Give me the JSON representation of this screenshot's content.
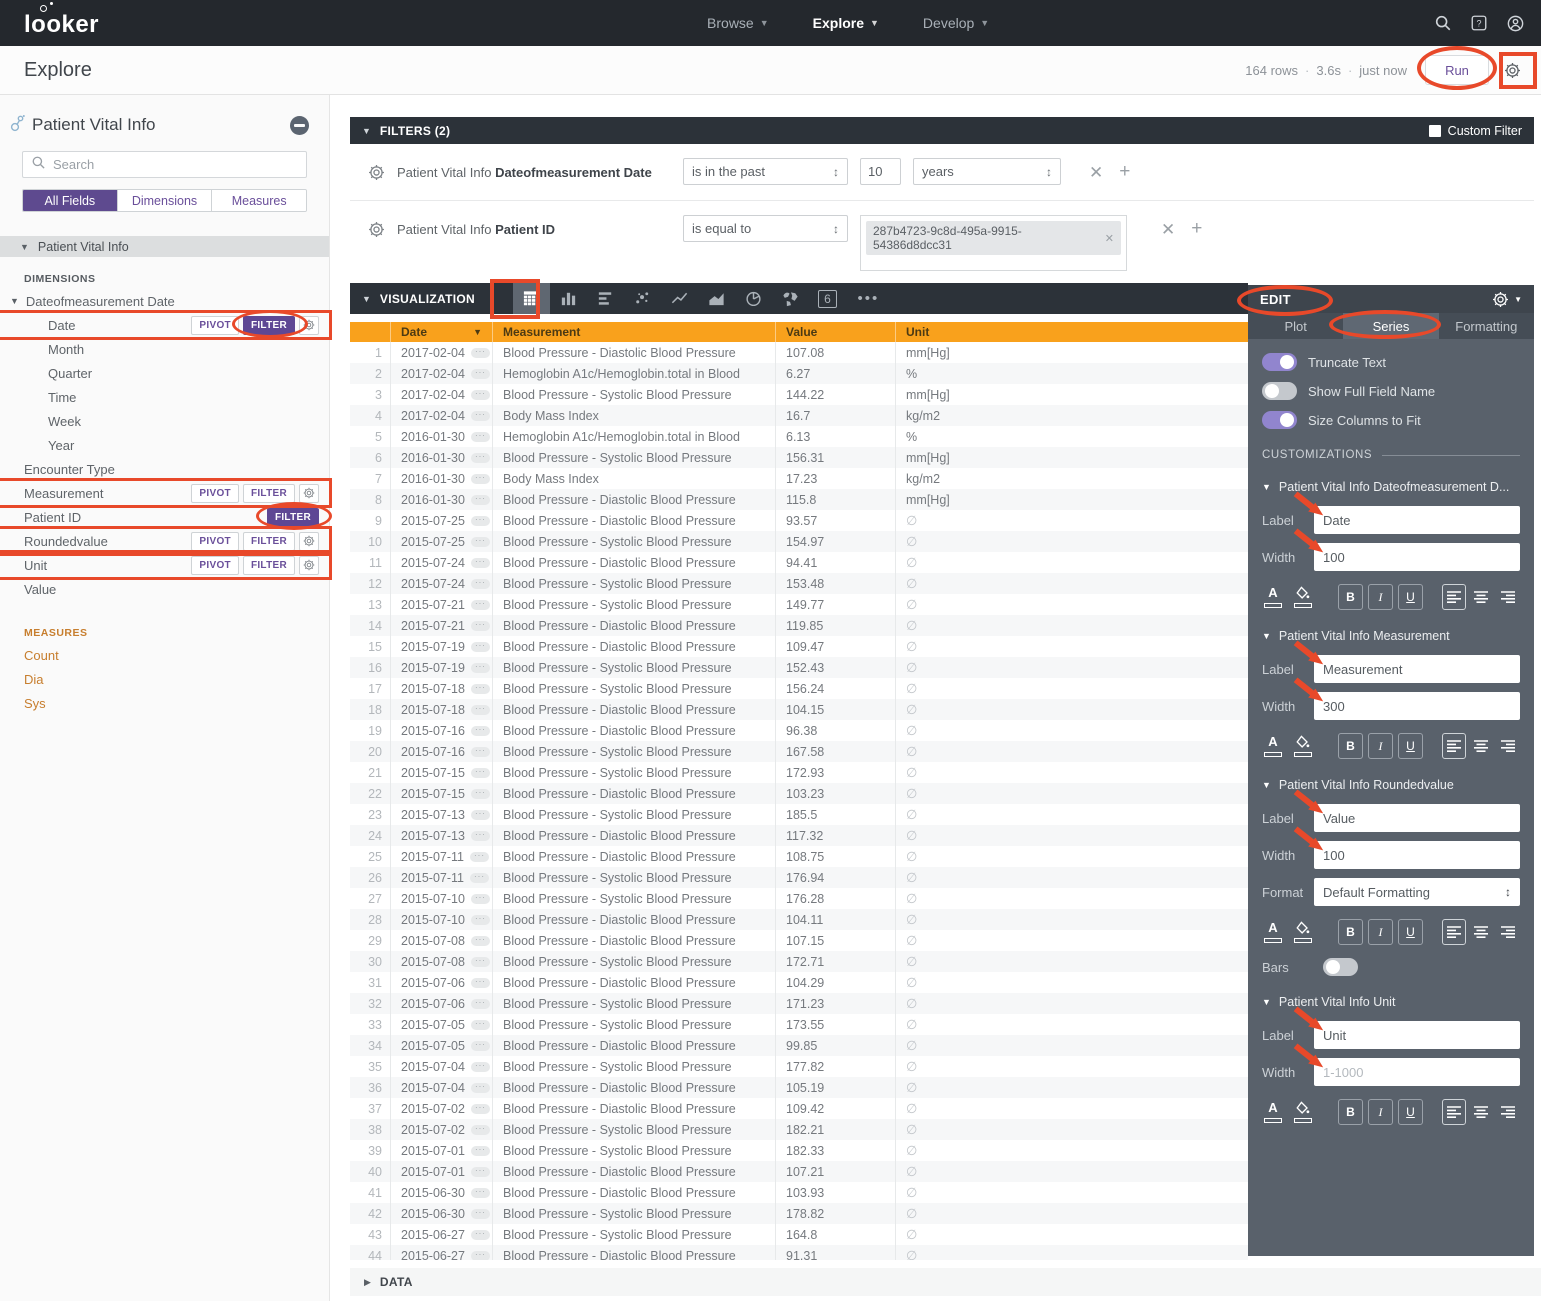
{
  "topnav": {
    "logo": "looker",
    "menus": [
      {
        "label": "Browse",
        "active": false
      },
      {
        "label": "Explore",
        "active": true
      },
      {
        "label": "Develop",
        "active": false
      }
    ]
  },
  "header": {
    "title": "Explore",
    "stats": [
      "164 rows",
      "3.6s",
      "just now"
    ],
    "run_label": "Run"
  },
  "sidebar": {
    "model_title": "Patient Vital Info",
    "search_placeholder": "Search",
    "tabs": [
      {
        "label": "All Fields",
        "active": true
      },
      {
        "label": "Dimensions",
        "active": false
      },
      {
        "label": "Measures",
        "active": false
      }
    ],
    "group_label": "Patient Vital Info",
    "dimensions_heading": "DIMENSIONS",
    "measures_heading": "MEASURES",
    "pivot_label": "PIVOT",
    "filter_label": "FILTER",
    "fields": [
      {
        "label": "Dateofmeasurement Date",
        "indent": 0,
        "expander": true
      },
      {
        "label": "Date",
        "indent": 1,
        "pivot": true,
        "filter": true,
        "filter_active": true,
        "gear": true,
        "ann_box": true,
        "ann_ellipse": true
      },
      {
        "label": "Month",
        "indent": 1
      },
      {
        "label": "Quarter",
        "indent": 1
      },
      {
        "label": "Time",
        "indent": 1
      },
      {
        "label": "Week",
        "indent": 1
      },
      {
        "label": "Year",
        "indent": 1
      },
      {
        "label": "Encounter Type",
        "indent": 0
      },
      {
        "label": "Measurement",
        "indent": 0,
        "pivot": true,
        "filter": true,
        "gear": true,
        "ann_box": true
      },
      {
        "label": "Patient ID",
        "indent": 0,
        "filter": true,
        "filter_active": true,
        "ann_ellipse": true
      },
      {
        "label": "Roundedvalue",
        "indent": 0,
        "pivot": true,
        "filter": true,
        "gear": true,
        "ann_box": true
      },
      {
        "label": "Unit",
        "indent": 0,
        "pivot": true,
        "filter": true,
        "gear": true,
        "ann_box": true
      },
      {
        "label": "Value",
        "indent": 0
      }
    ],
    "measures": [
      "Count",
      "Dia",
      "Sys"
    ]
  },
  "filters": {
    "title": "FILTERS (2)",
    "custom_filter_label": "Custom Filter",
    "rows": [
      {
        "prefix": "Patient Vital Info",
        "field": "Dateofmeasurement Date",
        "op": "is in the past",
        "value": "10",
        "unit": "years"
      },
      {
        "prefix": "Patient Vital Info",
        "field": "Patient ID",
        "op": "is equal to",
        "tag": "287b4723-9c8d-495a-9915-54386d8dcc31"
      }
    ]
  },
  "visualization": {
    "title": "VISUALIZATION",
    "icons": [
      {
        "name": "table",
        "selected": true
      },
      {
        "name": "bar",
        "selected": false
      },
      {
        "name": "hbar",
        "selected": false
      },
      {
        "name": "scatter",
        "selected": false
      },
      {
        "name": "line",
        "selected": false
      },
      {
        "name": "area",
        "selected": false
      },
      {
        "name": "pie",
        "selected": false
      },
      {
        "name": "map",
        "selected": false
      },
      {
        "name": "single-value",
        "selected": false,
        "glyph": "6"
      },
      {
        "name": "more",
        "selected": false
      }
    ]
  },
  "table": {
    "columns": [
      "Date",
      "Measurement",
      "Value",
      "Unit"
    ],
    "null_symbol": "∅",
    "rows": [
      [
        "2017-02-04",
        "Blood Pressure - Diastolic Blood Pressure",
        "107.08",
        "mm[Hg]"
      ],
      [
        "2017-02-04",
        "Hemoglobin A1c/Hemoglobin.total in Blood",
        "6.27",
        "%"
      ],
      [
        "2017-02-04",
        "Blood Pressure - Systolic Blood Pressure",
        "144.22",
        "mm[Hg]"
      ],
      [
        "2017-02-04",
        "Body Mass Index",
        "16.7",
        "kg/m2"
      ],
      [
        "2016-01-30",
        "Hemoglobin A1c/Hemoglobin.total in Blood",
        "6.13",
        "%"
      ],
      [
        "2016-01-30",
        "Blood Pressure - Systolic Blood Pressure",
        "156.31",
        "mm[Hg]"
      ],
      [
        "2016-01-30",
        "Body Mass Index",
        "17.23",
        "kg/m2"
      ],
      [
        "2016-01-30",
        "Blood Pressure - Diastolic Blood Pressure",
        "115.8",
        "mm[Hg]"
      ],
      [
        "2015-07-25",
        "Blood Pressure - Diastolic Blood Pressure",
        "93.57",
        null
      ],
      [
        "2015-07-25",
        "Blood Pressure - Systolic Blood Pressure",
        "154.97",
        null
      ],
      [
        "2015-07-24",
        "Blood Pressure - Diastolic Blood Pressure",
        "94.41",
        null
      ],
      [
        "2015-07-24",
        "Blood Pressure - Systolic Blood Pressure",
        "153.48",
        null
      ],
      [
        "2015-07-21",
        "Blood Pressure - Systolic Blood Pressure",
        "149.77",
        null
      ],
      [
        "2015-07-21",
        "Blood Pressure - Diastolic Blood Pressure",
        "119.85",
        null
      ],
      [
        "2015-07-19",
        "Blood Pressure - Diastolic Blood Pressure",
        "109.47",
        null
      ],
      [
        "2015-07-19",
        "Blood Pressure - Systolic Blood Pressure",
        "152.43",
        null
      ],
      [
        "2015-07-18",
        "Blood Pressure - Systolic Blood Pressure",
        "156.24",
        null
      ],
      [
        "2015-07-18",
        "Blood Pressure - Diastolic Blood Pressure",
        "104.15",
        null
      ],
      [
        "2015-07-16",
        "Blood Pressure - Diastolic Blood Pressure",
        "96.38",
        null
      ],
      [
        "2015-07-16",
        "Blood Pressure - Systolic Blood Pressure",
        "167.58",
        null
      ],
      [
        "2015-07-15",
        "Blood Pressure - Systolic Blood Pressure",
        "172.93",
        null
      ],
      [
        "2015-07-15",
        "Blood Pressure - Diastolic Blood Pressure",
        "103.23",
        null
      ],
      [
        "2015-07-13",
        "Blood Pressure - Systolic Blood Pressure",
        "185.5",
        null
      ],
      [
        "2015-07-13",
        "Blood Pressure - Diastolic Blood Pressure",
        "117.32",
        null
      ],
      [
        "2015-07-11",
        "Blood Pressure - Diastolic Blood Pressure",
        "108.75",
        null
      ],
      [
        "2015-07-11",
        "Blood Pressure - Systolic Blood Pressure",
        "176.94",
        null
      ],
      [
        "2015-07-10",
        "Blood Pressure - Systolic Blood Pressure",
        "176.28",
        null
      ],
      [
        "2015-07-10",
        "Blood Pressure - Diastolic Blood Pressure",
        "104.11",
        null
      ],
      [
        "2015-07-08",
        "Blood Pressure - Diastolic Blood Pressure",
        "107.15",
        null
      ],
      [
        "2015-07-08",
        "Blood Pressure - Systolic Blood Pressure",
        "172.71",
        null
      ],
      [
        "2015-07-06",
        "Blood Pressure - Diastolic Blood Pressure",
        "104.29",
        null
      ],
      [
        "2015-07-06",
        "Blood Pressure - Systolic Blood Pressure",
        "171.23",
        null
      ],
      [
        "2015-07-05",
        "Blood Pressure - Systolic Blood Pressure",
        "173.55",
        null
      ],
      [
        "2015-07-05",
        "Blood Pressure - Diastolic Blood Pressure",
        "99.85",
        null
      ],
      [
        "2015-07-04",
        "Blood Pressure - Systolic Blood Pressure",
        "177.82",
        null
      ],
      [
        "2015-07-04",
        "Blood Pressure - Diastolic Blood Pressure",
        "105.19",
        null
      ],
      [
        "2015-07-02",
        "Blood Pressure - Diastolic Blood Pressure",
        "109.42",
        null
      ],
      [
        "2015-07-02",
        "Blood Pressure - Systolic Blood Pressure",
        "182.21",
        null
      ],
      [
        "2015-07-01",
        "Blood Pressure - Systolic Blood Pressure",
        "182.33",
        null
      ],
      [
        "2015-07-01",
        "Blood Pressure - Diastolic Blood Pressure",
        "107.21",
        null
      ],
      [
        "2015-06-30",
        "Blood Pressure - Diastolic Blood Pressure",
        "103.93",
        null
      ],
      [
        "2015-06-30",
        "Blood Pressure - Systolic Blood Pressure",
        "178.82",
        null
      ],
      [
        "2015-06-27",
        "Blood Pressure - Systolic Blood Pressure",
        "164.8",
        null
      ],
      [
        "2015-06-27",
        "Blood Pressure - Diastolic Blood Pressure",
        "91.31",
        null
      ]
    ]
  },
  "edit_panel": {
    "title": "EDIT",
    "tabs": [
      {
        "label": "Plot",
        "active": false
      },
      {
        "label": "Series",
        "active": true
      },
      {
        "label": "Formatting",
        "active": false
      }
    ],
    "toggles": [
      {
        "label": "Truncate Text",
        "on": true
      },
      {
        "label": "Show Full Field Name",
        "on": false
      },
      {
        "label": "Size Columns to Fit",
        "on": true
      }
    ],
    "customizations_heading": "CUSTOMIZATIONS",
    "label_caption": "Label",
    "width_caption": "Width",
    "format_caption": "Format",
    "bars_caption": "Bars",
    "sections": [
      {
        "title": "Patient Vital Info Dateofmeasurement D...",
        "label": "Date",
        "width": "100"
      },
      {
        "title": "Patient Vital Info Measurement",
        "label": "Measurement",
        "width": "300"
      },
      {
        "title": "Patient Vital Info Roundedvalue",
        "label": "Value",
        "width": "100",
        "format": "Default Formatting",
        "bars": true
      },
      {
        "title": "Patient Vital Info Unit",
        "label": "Unit",
        "width": "1-1000",
        "width_placeholder": true
      }
    ]
  },
  "data_section": {
    "title": "DATA"
  },
  "colors": {
    "accent_purple": "#5e4794",
    "header_orange": "#f9a11c",
    "annotation_red": "#e8492a",
    "measure_orange": "#c77e2e"
  }
}
